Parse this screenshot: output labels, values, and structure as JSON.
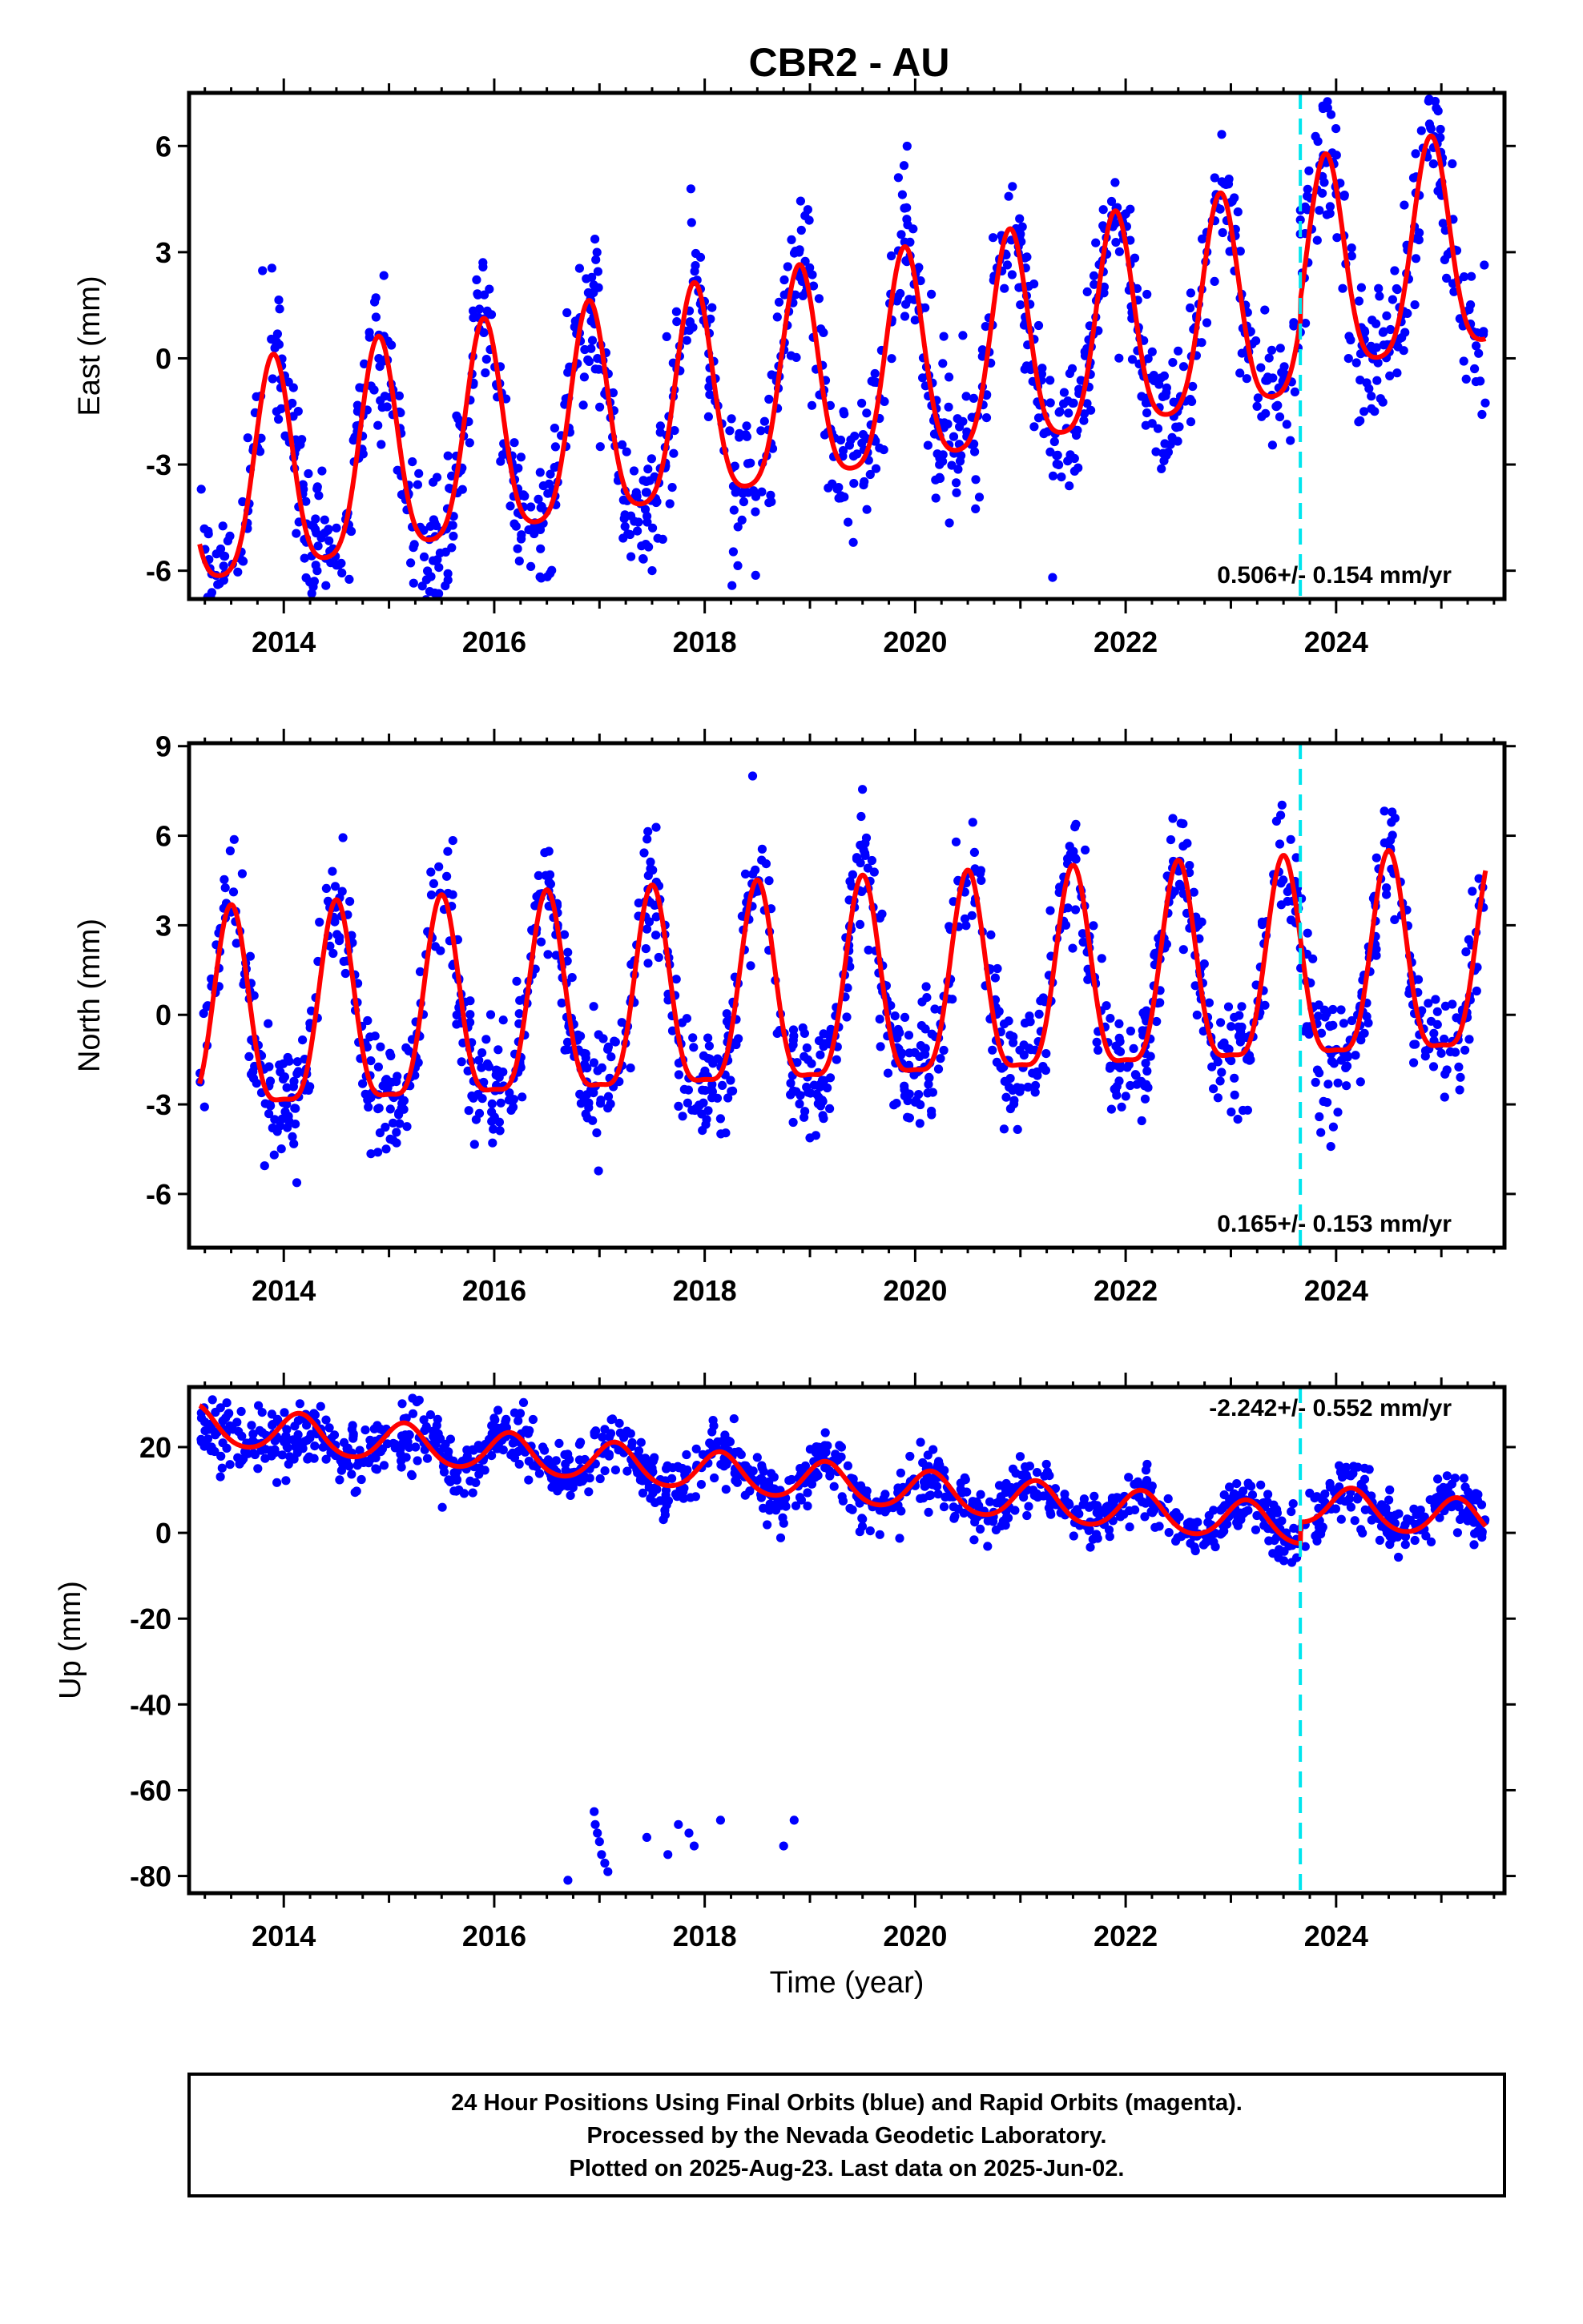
{
  "chart_data": {
    "type": "scatter",
    "title": "CBR2 - AU",
    "xlabel": "Time (year)",
    "x_ticks": [
      "2014",
      "2016",
      "2018",
      "2020",
      "2022",
      "2024"
    ],
    "xlim": [
      2013.1,
      2025.6
    ],
    "equipment_change": 2023.66,
    "colors": {
      "points": "#0000ff",
      "model": "#ff0000",
      "event": "#00e5ee",
      "axis": "#000000"
    },
    "panels": [
      {
        "name": "east",
        "ylabel": "East (mm)",
        "ylim": [
          -6.8,
          7.5
        ],
        "y_ticks": [
          "6",
          "3",
          "0",
          "-3",
          "-6"
        ],
        "y_tick_values": [
          6,
          3,
          0,
          -3,
          -6
        ],
        "rate": "0.506+/- 0.154 mm/yr",
        "model": {
          "offset": -0.9,
          "trend": 0.506,
          "annual_amp": 3.0,
          "annual_peak": 2013.9,
          "semi_amp": 0.6,
          "semi_peak": 2013.9,
          "step_value": 0.6
        },
        "scatter_sd": 1.0,
        "points_per_year": 110
      },
      {
        "name": "north",
        "ylabel": "North (mm)",
        "ylim": [
          -7.8,
          9.1
        ],
        "y_ticks": [
          "9",
          "6",
          "3",
          "0",
          "-3",
          "-6"
        ],
        "y_tick_values": [
          9,
          6,
          3,
          0,
          -3,
          -6
        ],
        "rate": "0.165+/- 0.153 mm/yr",
        "model": {
          "offset": 0.4,
          "trend": 0.165,
          "annual_amp": 3.3,
          "annual_peak": 2013.5,
          "semi_amp": 0.9,
          "semi_peak": 2013.5,
          "step_value": 0.0
        },
        "scatter_sd": 1.0,
        "points_per_year": 110
      },
      {
        "name": "up",
        "ylabel": "Up (mm)",
        "ylim": [
          -84,
          34
        ],
        "y_ticks": [
          "20",
          "0",
          "-20",
          "-40",
          "-60",
          "-80"
        ],
        "y_tick_values": [
          20,
          0,
          -20,
          -40,
          -60,
          -80
        ],
        "rate": "-2.242+/- 0.552 mm/yr",
        "model": {
          "offset": 12.0,
          "trend": -2.242,
          "annual_amp": 4.5,
          "annual_peak": 2014.15,
          "semi_amp": 0.5,
          "semi_peak": 2014.15,
          "step_value": 5.0
        },
        "scatter_sd": 3.2,
        "points_per_year": 110,
        "outliers": [
          {
            "x": 2016.7,
            "y": -81.0
          },
          {
            "x": 2016.95,
            "y": -65.0
          },
          {
            "x": 2016.96,
            "y": -68.0
          },
          {
            "x": 2016.98,
            "y": -70.0
          },
          {
            "x": 2017.0,
            "y": -72.0
          },
          {
            "x": 2017.02,
            "y": -75.0
          },
          {
            "x": 2017.05,
            "y": -77.0
          },
          {
            "x": 2017.08,
            "y": -79.0
          },
          {
            "x": 2017.45,
            "y": -71.0
          },
          {
            "x": 2017.65,
            "y": -75.0
          },
          {
            "x": 2017.75,
            "y": -68.0
          },
          {
            "x": 2017.85,
            "y": -70.0
          },
          {
            "x": 2017.9,
            "y": -73.0
          },
          {
            "x": 2018.15,
            "y": -67.0
          },
          {
            "x": 2018.75,
            "y": -73.0
          },
          {
            "x": 2018.85,
            "y": -67.0
          }
        ]
      }
    ]
  },
  "footer": {
    "line1": "24 Hour Positions Using Final Orbits (blue) and Rapid Orbits (magenta).",
    "line2": "Processed by the Nevada Geodetic Laboratory.",
    "line3": "Plotted on 2025-Aug-23. Last data on 2025-Jun-02."
  }
}
